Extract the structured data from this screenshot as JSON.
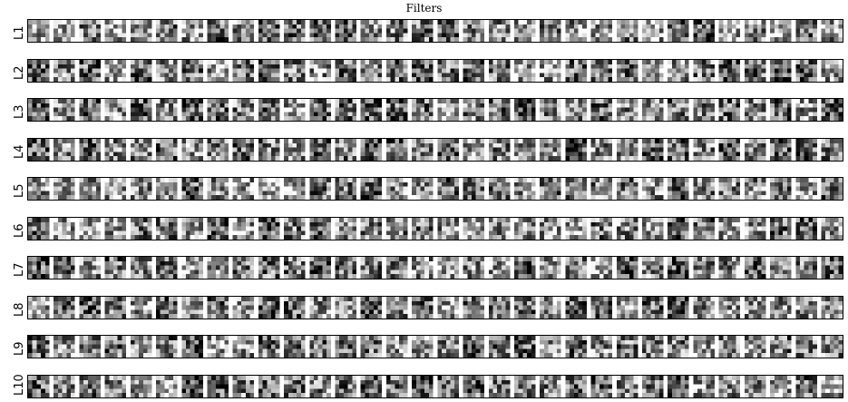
{
  "title": "Filters",
  "layers": [
    {
      "label": "L1"
    },
    {
      "label": "L2"
    },
    {
      "label": "L3"
    },
    {
      "label": "L4"
    },
    {
      "label": "L5"
    },
    {
      "label": "L6"
    },
    {
      "label": "L7"
    },
    {
      "label": "L8"
    },
    {
      "label": "L9"
    },
    {
      "label": "L10"
    }
  ],
  "filters_per_row": 32,
  "filter_size": 5,
  "colormap": "grayscale"
}
